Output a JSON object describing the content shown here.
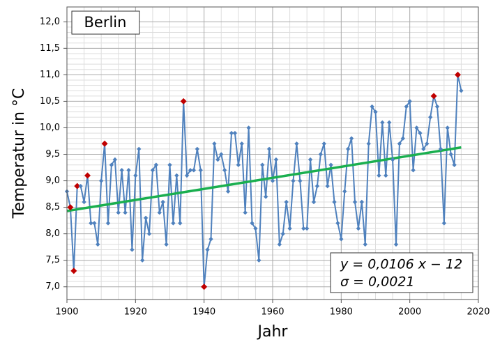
{
  "chart_data": {
    "type": "line",
    "legend_label": "Berlin",
    "xlabel": "Jahr",
    "ylabel": "Temperatur in °C",
    "annotations": [
      "y = 0,0106 x − 12",
      "σ = 0,0021"
    ],
    "x": [
      1900,
      1901,
      1902,
      1903,
      1904,
      1905,
      1906,
      1907,
      1908,
      1909,
      1910,
      1911,
      1912,
      1913,
      1914,
      1915,
      1916,
      1917,
      1918,
      1919,
      1920,
      1921,
      1922,
      1923,
      1924,
      1925,
      1926,
      1927,
      1928,
      1929,
      1930,
      1931,
      1932,
      1933,
      1934,
      1935,
      1936,
      1937,
      1938,
      1939,
      1940,
      1941,
      1942,
      1943,
      1944,
      1945,
      1946,
      1947,
      1948,
      1949,
      1950,
      1951,
      1952,
      1953,
      1954,
      1955,
      1956,
      1957,
      1958,
      1959,
      1960,
      1961,
      1962,
      1963,
      1964,
      1965,
      1966,
      1967,
      1968,
      1969,
      1970,
      1971,
      1972,
      1973,
      1974,
      1975,
      1976,
      1977,
      1978,
      1979,
      1980,
      1981,
      1982,
      1983,
      1984,
      1985,
      1986,
      1987,
      1988,
      1989,
      1990,
      1991,
      1992,
      1993,
      1994,
      1995,
      1996,
      1997,
      1998,
      1999,
      2000,
      2001,
      2002,
      2003,
      2004,
      2005,
      2006,
      2007,
      2008,
      2009,
      2010,
      2011,
      2012,
      2013,
      2014,
      2015
    ],
    "series": [
      {
        "color": "#4f81bd",
        "values": [
          8.8,
          8.5,
          7.3,
          8.9,
          8.9,
          8.6,
          9.1,
          8.2,
          8.2,
          7.8,
          9.0,
          9.7,
          8.2,
          9.3,
          9.4,
          8.4,
          9.2,
          8.4,
          9.2,
          7.7,
          9.1,
          9.6,
          7.5,
          8.3,
          8.0,
          9.2,
          9.3,
          8.4,
          8.6,
          7.8,
          9.3,
          8.2,
          9.1,
          8.2,
          10.5,
          9.1,
          9.2,
          9.2,
          9.6,
          9.2,
          7.0,
          7.7,
          7.9,
          9.7,
          9.4,
          9.5,
          9.2,
          8.8,
          9.9,
          9.9,
          9.3,
          9.7,
          8.4,
          10.0,
          8.2,
          8.1,
          7.5,
          9.3,
          8.7,
          9.6,
          9.0,
          9.4,
          7.8,
          8.0,
          8.6,
          8.1,
          9.0,
          9.7,
          9.0,
          8.1,
          8.1,
          9.4,
          8.6,
          8.9,
          9.5,
          9.7,
          8.9,
          9.3,
          8.6,
          8.2,
          7.9,
          8.8,
          9.6,
          9.8,
          8.6,
          8.1,
          8.6,
          7.8,
          9.7,
          10.4,
          10.3,
          9.1,
          10.1,
          9.1,
          10.1,
          9.4,
          7.8,
          9.7,
          9.8,
          10.4,
          10.5,
          9.2,
          10.0,
          9.9,
          9.6,
          9.7,
          10.2,
          10.6,
          10.4,
          9.6,
          8.2,
          10.0,
          9.5,
          9.3,
          11.0,
          10.7
        ]
      }
    ],
    "highlight_indices": [
      1,
      2,
      3,
      6,
      11,
      34,
      40,
      107,
      114
    ],
    "highlight_color": "#c00000",
    "trend": {
      "x": [
        1900,
        2015
      ],
      "values": [
        8.43,
        9.63
      ],
      "color": "#1aaf4f"
    },
    "xlim": [
      1900,
      2020
    ],
    "xticks": [
      1900,
      1920,
      1940,
      1960,
      1980,
      2000,
      2020
    ],
    "ylim": [
      6.76,
      12.28
    ],
    "yticks": [
      {
        "value": 7,
        "label": "7,0"
      },
      {
        "value": 7.5,
        "label": "7,5"
      },
      {
        "value": 8,
        "label": "8,0"
      },
      {
        "value": 8.5,
        "label": "8,5"
      },
      {
        "value": 9,
        "label": "9,0"
      },
      {
        "value": 9.5,
        "label": "9,5"
      },
      {
        "value": 10,
        "label": "10,0"
      },
      {
        "value": 10.5,
        "label": "10,5"
      },
      {
        "value": 11,
        "label": "11,0"
      },
      {
        "value": 11.5,
        "label": "11,5"
      },
      {
        "value": 12,
        "label": "12,0"
      }
    ],
    "grid": true
  }
}
